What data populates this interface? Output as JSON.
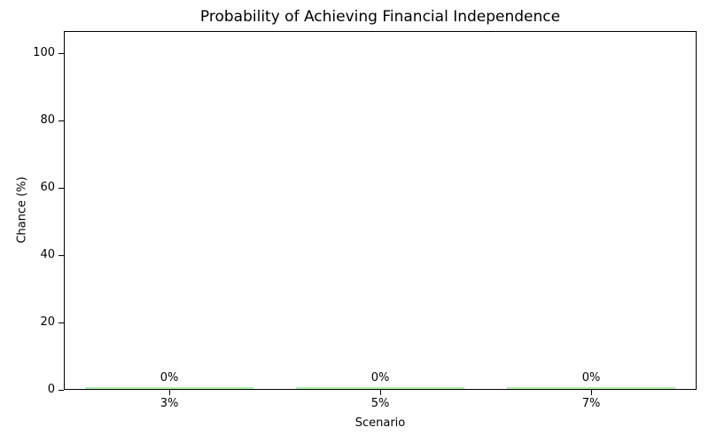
{
  "chart_data": {
    "type": "bar",
    "title": "Probability of Achieving Financial Independence",
    "xlabel": "Scenario",
    "ylabel": "Chance (%)",
    "categories": [
      "3%",
      "5%",
      "7%"
    ],
    "values": [
      0,
      0,
      0
    ],
    "bar_value_labels": [
      "0%",
      "0%",
      "0%"
    ],
    "yticks": [
      0,
      20,
      40,
      60,
      80,
      100
    ],
    "ylim": [
      0,
      106
    ],
    "grid": false,
    "legend": null,
    "bar_color": "#90EE90",
    "spine_color": "#000000",
    "text_color": "#000000",
    "background_color": "#ffffff"
  }
}
